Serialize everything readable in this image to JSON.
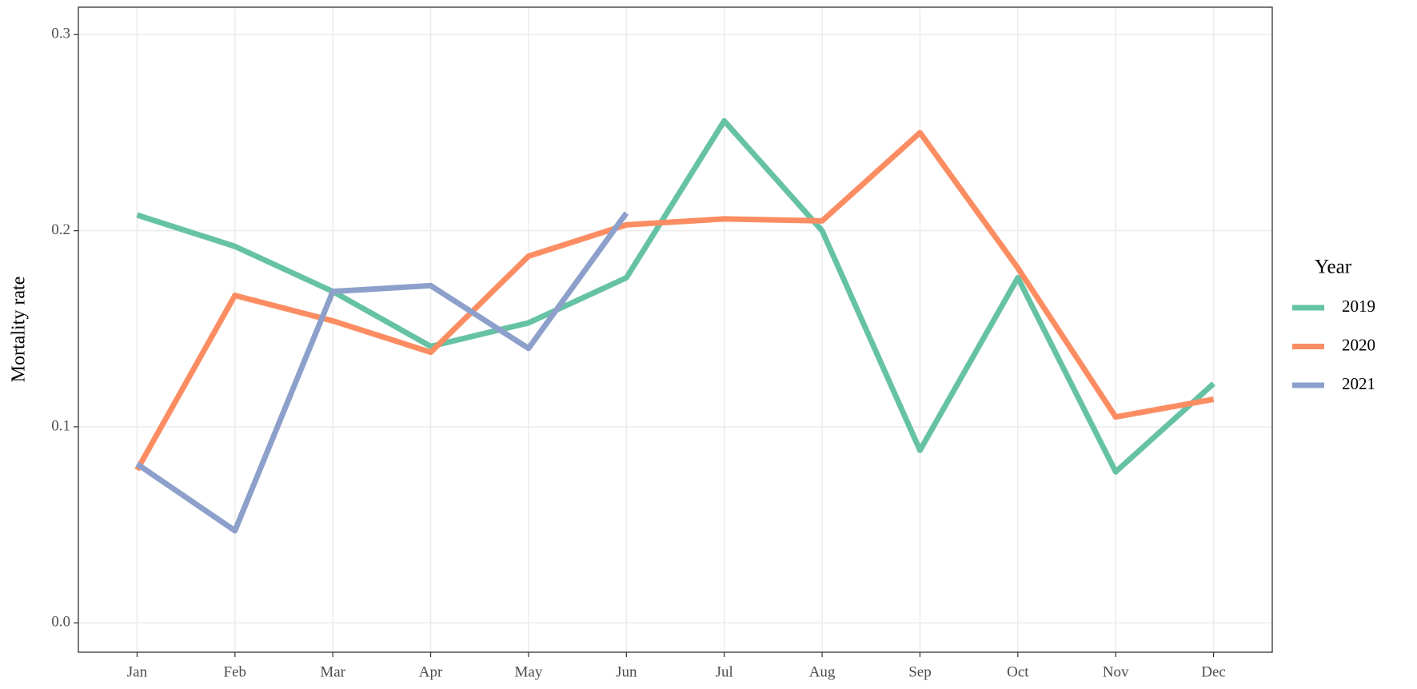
{
  "chart_data": {
    "type": "line",
    "y_label": "Mortality rate",
    "legend_title": "Year",
    "legend_position": "right",
    "grid": true,
    "categories": [
      "Jan",
      "Feb",
      "Mar",
      "Apr",
      "May",
      "Jun",
      "Jul",
      "Aug",
      "Sep",
      "Oct",
      "Nov",
      "Dec"
    ],
    "series": [
      {
        "name": "2019",
        "color": "#66c2a5",
        "values": [
          0.208,
          0.192,
          0.169,
          0.141,
          0.153,
          0.176,
          0.256,
          0.2,
          0.088,
          0.176,
          0.077,
          0.122
        ]
      },
      {
        "name": "2020",
        "color": "#fc8d62",
        "values": [
          0.078,
          0.167,
          0.154,
          0.138,
          0.187,
          0.203,
          0.206,
          0.205,
          0.25,
          0.181,
          0.105,
          0.114
        ]
      },
      {
        "name": "2021",
        "color": "#8da0cb",
        "values": [
          0.081,
          0.047,
          0.169,
          0.172,
          0.14,
          0.209,
          null,
          null,
          null,
          null,
          null,
          null
        ]
      }
    ],
    "ylim": [
      -0.015,
      0.314
    ],
    "yticks": [
      {
        "value": 0,
        "label": "0.0"
      },
      0.1,
      0.2,
      0.3
    ]
  }
}
